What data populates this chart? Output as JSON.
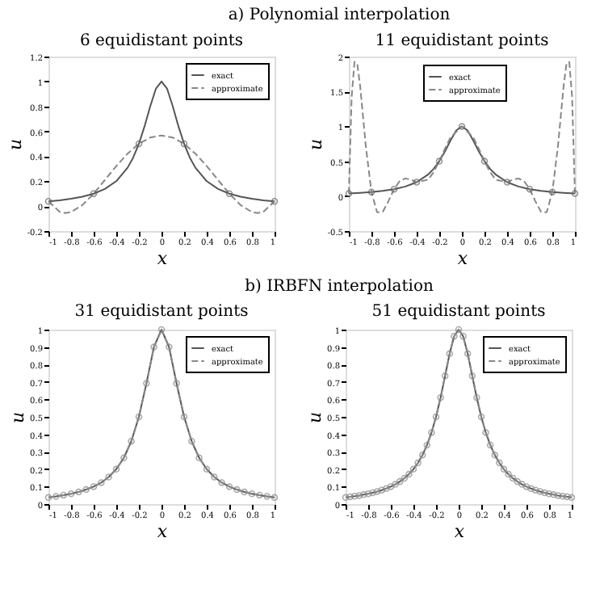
{
  "chart_data": [
    {
      "type": "line",
      "title": "6 equidistant points",
      "xlabel": "x",
      "ylabel": "u",
      "annotations": [
        "a) Polynomial interpolation"
      ],
      "xlim": [
        -1,
        1
      ],
      "xticks": [
        -1,
        -0.8,
        -0.6,
        -0.4,
        -0.2,
        0,
        0.2,
        0.4,
        0.6,
        0.8,
        1
      ],
      "ylim": [
        -0.2,
        1.2
      ],
      "yticks": [
        -0.2,
        0,
        0.2,
        0.4,
        0.6,
        0.8,
        1,
        1.2
      ],
      "legend": "top right",
      "series": [
        {
          "name": "exact",
          "color": "#555555",
          "line_style": "solid",
          "x": [
            -1,
            -0.9,
            -0.8,
            -0.7,
            -0.6,
            -0.5,
            -0.4,
            -0.3,
            -0.25,
            -0.2,
            -0.15,
            -0.1,
            -0.05,
            0,
            0.05,
            0.1,
            0.15,
            0.2,
            0.25,
            0.3,
            0.4,
            0.5,
            0.6,
            0.7,
            0.8,
            0.9,
            1
          ],
          "values": [
            0.038,
            0.047,
            0.059,
            0.075,
            0.1,
            0.138,
            0.2,
            0.308,
            0.39,
            0.5,
            0.64,
            0.8,
            0.941,
            1,
            0.941,
            0.8,
            0.64,
            0.5,
            0.39,
            0.308,
            0.2,
            0.138,
            0.1,
            0.075,
            0.059,
            0.047,
            0.038
          ]
        },
        {
          "name": "approximate",
          "color": "#888888",
          "line_style": "dashed",
          "x": [
            -1,
            -0.9,
            -0.85,
            -0.8,
            -0.7,
            -0.6,
            -0.5,
            -0.4,
            -0.3,
            -0.2,
            -0.1,
            0,
            0.1,
            0.2,
            0.3,
            0.4,
            0.5,
            0.6,
            0.7,
            0.8,
            0.85,
            0.9,
            1
          ],
          "values": [
            0.038,
            -0.046,
            -0.056,
            -0.048,
            0.008,
            0.1,
            0.21,
            0.321,
            0.421,
            0.5,
            0.55,
            0.567,
            0.55,
            0.5,
            0.421,
            0.321,
            0.21,
            0.1,
            0.008,
            -0.048,
            -0.056,
            -0.046,
            0.038
          ]
        },
        {
          "type": "scatter",
          "color": "#666666",
          "marker": "circle",
          "x": [
            -1,
            -0.6,
            -0.2,
            0.2,
            0.6,
            1
          ],
          "values": [
            0.038,
            0.1,
            0.5,
            0.5,
            0.1,
            0.038
          ]
        }
      ]
    },
    {
      "type": "line",
      "title": "11 equidistant points",
      "xlabel": "x",
      "ylabel": "u",
      "xlim": [
        -1,
        1
      ],
      "xticks": [
        -1,
        -0.8,
        -0.6,
        -0.4,
        -0.2,
        0,
        0.2,
        0.4,
        0.6,
        0.8,
        1
      ],
      "ylim": [
        -0.5,
        2
      ],
      "yticks": [
        -0.5,
        0,
        0.5,
        1,
        1.5,
        2
      ],
      "legend": "top",
      "series": [
        {
          "name": "exact",
          "color": "#555555",
          "line_style": "solid",
          "x": [
            -1,
            -0.9,
            -0.8,
            -0.7,
            -0.6,
            -0.5,
            -0.4,
            -0.3,
            -0.25,
            -0.2,
            -0.15,
            -0.1,
            -0.05,
            0,
            0.05,
            0.1,
            0.15,
            0.2,
            0.25,
            0.3,
            0.4,
            0.5,
            0.6,
            0.7,
            0.8,
            0.9,
            1
          ],
          "values": [
            0.038,
            0.047,
            0.059,
            0.075,
            0.1,
            0.138,
            0.2,
            0.308,
            0.39,
            0.5,
            0.64,
            0.8,
            0.941,
            1,
            0.941,
            0.8,
            0.64,
            0.5,
            0.39,
            0.308,
            0.2,
            0.138,
            0.1,
            0.075,
            0.059,
            0.047,
            0.038
          ]
        },
        {
          "name": "approximate",
          "color": "#888888",
          "line_style": "dashed",
          "x": [
            -1,
            -0.975,
            -0.95,
            -0.925,
            -0.9,
            -0.85,
            -0.8,
            -0.75,
            -0.7,
            -0.65,
            -0.6,
            -0.55,
            -0.5,
            -0.45,
            -0.4,
            -0.3,
            -0.25,
            -0.2,
            -0.15,
            -0.1,
            0,
            0.1,
            0.15,
            0.2,
            0.25,
            0.3,
            0.4,
            0.45,
            0.5,
            0.55,
            0.6,
            0.65,
            0.7,
            0.75,
            0.8,
            0.85,
            0.9,
            0.925,
            0.95,
            0.975,
            1
          ],
          "values": [
            0.038,
            1.423,
            1.924,
            1.892,
            1.579,
            0.719,
            0.059,
            -0.232,
            -0.226,
            -0.073,
            0.1,
            0.216,
            0.254,
            0.235,
            0.2,
            0.235,
            0.343,
            0.5,
            0.679,
            0.843,
            1,
            0.843,
            0.679,
            0.5,
            0.343,
            0.235,
            0.2,
            0.235,
            0.254,
            0.216,
            0.1,
            -0.073,
            -0.226,
            -0.232,
            0.059,
            0.719,
            1.579,
            1.892,
            1.924,
            1.423,
            0.038
          ]
        },
        {
          "type": "scatter",
          "color": "#666666",
          "marker": "circle",
          "x": [
            -1,
            -0.8,
            -0.6,
            -0.4,
            -0.2,
            0,
            0.2,
            0.4,
            0.6,
            0.8,
            1
          ],
          "values": [
            0.038,
            0.059,
            0.1,
            0.2,
            0.5,
            1,
            0.5,
            0.2,
            0.1,
            0.059,
            0.038
          ]
        }
      ]
    },
    {
      "type": "line",
      "title": "31 equidistant points",
      "xlabel": "x",
      "ylabel": "u",
      "annotations": [
        "b) IRBFN interpolation"
      ],
      "xlim": [
        -1,
        1
      ],
      "xticks": [
        -1,
        -0.8,
        -0.6,
        -0.4,
        -0.2,
        0,
        0.2,
        0.4,
        0.6,
        0.8,
        1
      ],
      "ylim": [
        0,
        1
      ],
      "yticks": [
        0,
        0.1,
        0.2,
        0.3,
        0.4,
        0.5,
        0.6,
        0.7,
        0.8,
        0.9,
        1
      ],
      "legend": "top right",
      "x": [
        -1,
        -0.933,
        -0.867,
        -0.8,
        -0.733,
        -0.667,
        -0.6,
        -0.533,
        -0.467,
        -0.4,
        -0.333,
        -0.267,
        -0.2,
        -0.133,
        -0.067,
        0,
        0.067,
        0.133,
        0.2,
        0.267,
        0.333,
        0.4,
        0.467,
        0.533,
        0.6,
        0.667,
        0.733,
        0.8,
        0.867,
        0.933,
        1
      ],
      "series": [
        {
          "name": "exact",
          "color": "#555555",
          "line_style": "solid",
          "values": [
            0.038,
            0.044,
            0.051,
            0.059,
            0.069,
            0.083,
            0.1,
            0.123,
            0.155,
            0.2,
            0.265,
            0.36,
            0.5,
            0.692,
            0.9,
            1,
            0.9,
            0.692,
            0.5,
            0.36,
            0.265,
            0.2,
            0.155,
            0.123,
            0.1,
            0.083,
            0.069,
            0.059,
            0.051,
            0.044,
            0.038
          ]
        },
        {
          "name": "approximate",
          "color": "#888888",
          "line_style": "dashed",
          "marker": "circle",
          "values": [
            0.038,
            0.044,
            0.051,
            0.059,
            0.069,
            0.083,
            0.1,
            0.123,
            0.155,
            0.2,
            0.265,
            0.36,
            0.5,
            0.692,
            0.9,
            1,
            0.9,
            0.692,
            0.5,
            0.36,
            0.265,
            0.2,
            0.155,
            0.123,
            0.1,
            0.083,
            0.069,
            0.059,
            0.051,
            0.044,
            0.038
          ]
        }
      ]
    },
    {
      "type": "line",
      "title": "51 equidistant points",
      "xlabel": "x",
      "ylabel": "u",
      "xlim": [
        -1,
        1
      ],
      "xticks": [
        -1,
        -0.8,
        -0.6,
        -0.4,
        -0.2,
        0,
        0.2,
        0.4,
        0.6,
        0.8,
        1
      ],
      "ylim": [
        0,
        1
      ],
      "yticks": [
        0,
        0.1,
        0.2,
        0.3,
        0.4,
        0.5,
        0.6,
        0.7,
        0.8,
        0.9,
        1
      ],
      "legend": "top right",
      "x": [
        -1,
        -0.96,
        -0.92,
        -0.88,
        -0.84,
        -0.8,
        -0.76,
        -0.72,
        -0.68,
        -0.64,
        -0.6,
        -0.56,
        -0.52,
        -0.48,
        -0.44,
        -0.4,
        -0.36,
        -0.32,
        -0.28,
        -0.24,
        -0.2,
        -0.16,
        -0.12,
        -0.08,
        -0.04,
        0,
        0.04,
        0.08,
        0.12,
        0.16,
        0.2,
        0.24,
        0.28,
        0.32,
        0.36,
        0.4,
        0.44,
        0.48,
        0.52,
        0.56,
        0.6,
        0.64,
        0.68,
        0.72,
        0.76,
        0.8,
        0.84,
        0.88,
        0.92,
        0.96,
        1
      ],
      "series": [
        {
          "name": "exact",
          "color": "#555555",
          "line_style": "solid",
          "values": [
            0.038,
            0.042,
            0.045,
            0.049,
            0.054,
            0.059,
            0.065,
            0.072,
            0.08,
            0.089,
            0.1,
            0.113,
            0.129,
            0.148,
            0.171,
            0.2,
            0.236,
            0.281,
            0.338,
            0.41,
            0.5,
            0.61,
            0.735,
            0.862,
            0.962,
            1,
            0.962,
            0.862,
            0.735,
            0.61,
            0.5,
            0.41,
            0.338,
            0.281,
            0.236,
            0.2,
            0.171,
            0.148,
            0.129,
            0.113,
            0.1,
            0.089,
            0.08,
            0.072,
            0.065,
            0.059,
            0.054,
            0.049,
            0.045,
            0.042,
            0.038
          ]
        },
        {
          "name": "approximate",
          "color": "#888888",
          "line_style": "dashed",
          "marker": "circle",
          "values": [
            0.038,
            0.042,
            0.045,
            0.049,
            0.054,
            0.059,
            0.065,
            0.072,
            0.08,
            0.089,
            0.1,
            0.113,
            0.129,
            0.148,
            0.171,
            0.2,
            0.236,
            0.281,
            0.338,
            0.41,
            0.5,
            0.61,
            0.735,
            0.862,
            0.962,
            1,
            0.962,
            0.862,
            0.735,
            0.61,
            0.5,
            0.41,
            0.338,
            0.281,
            0.236,
            0.2,
            0.171,
            0.148,
            0.129,
            0.113,
            0.1,
            0.089,
            0.08,
            0.072,
            0.065,
            0.059,
            0.054,
            0.049,
            0.045,
            0.042,
            0.038
          ]
        }
      ]
    }
  ]
}
